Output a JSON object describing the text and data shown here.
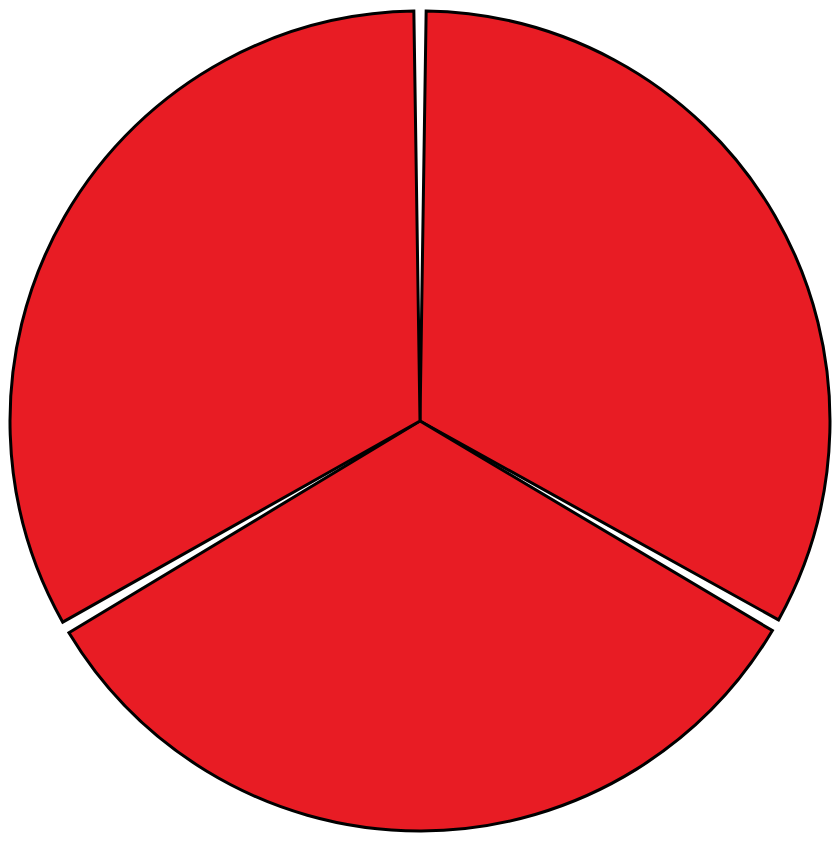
{
  "chart_data": {
    "type": "pie",
    "categories": [
      null,
      null,
      null
    ],
    "values": [
      33.3,
      33.3,
      33.4
    ],
    "colors": [
      "#e81c24",
      "#e81c24",
      "#e81c24"
    ]
  }
}
